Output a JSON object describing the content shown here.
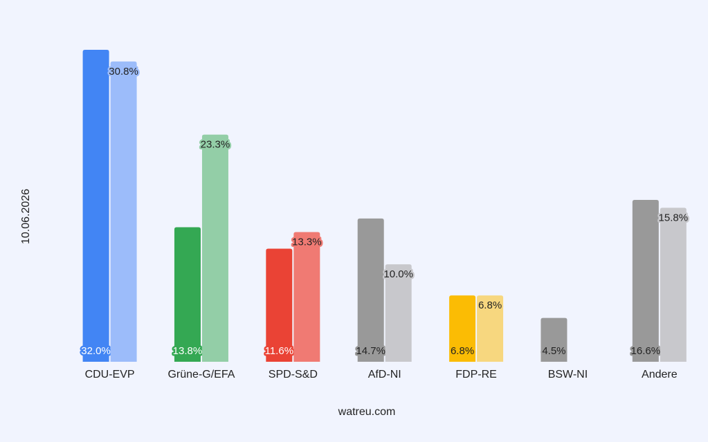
{
  "chart_data": {
    "type": "bar",
    "y_label": "10.06.2026",
    "x_label": "watreu.com",
    "categories": [
      "CDU-EVP",
      "Grüne-G/EFA",
      "SPD-S&D",
      "AfD-NI",
      "FDP-RE",
      "BSW-NI",
      "Andere"
    ],
    "series": [
      {
        "colors": [
          "#4285f4",
          "#34a853",
          "#ea4335",
          "#999999",
          "#fbbc04",
          "#999999",
          "#999999"
        ],
        "values": [
          32.0,
          13.8,
          11.6,
          14.7,
          6.8,
          4.5,
          16.6
        ],
        "value_labels": [
          "32.0%",
          "13.8%",
          "11.6%",
          "14.7%",
          "6.8%",
          "4.5%",
          "16.6%"
        ]
      },
      {
        "colors": [
          "#9cbcfa",
          "#93cea7",
          "#f07a73",
          "#c8c8cc",
          "#f7d77f",
          null,
          "#c8c8cc"
        ],
        "values": [
          30.8,
          23.3,
          13.3,
          10.0,
          6.8,
          null,
          15.8
        ],
        "value_labels": [
          "30.8%",
          "23.3%",
          "13.3%",
          "10.0%",
          "6.8%",
          null,
          "15.8%"
        ]
      }
    ]
  }
}
